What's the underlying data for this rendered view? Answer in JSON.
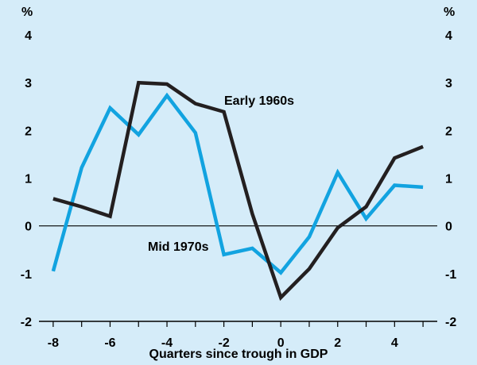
{
  "chart_data": {
    "type": "line",
    "xlabel": "Quarters since trough in GDP",
    "unit_left": "%",
    "unit_right": "%",
    "xlim": [
      -8.5,
      5.5
    ],
    "ylim": [
      -2,
      4
    ],
    "x_ticks": [
      -8,
      -6,
      -4,
      -2,
      0,
      2,
      4
    ],
    "y_ticks": [
      4,
      3,
      2,
      1,
      0,
      -1,
      -2
    ],
    "grid": false,
    "x": [
      -8,
      -7,
      -6,
      -5,
      -4,
      -3,
      -2,
      -1,
      0,
      1,
      2,
      3,
      4,
      5
    ],
    "series": [
      {
        "name": "Early 1960s",
        "color": "#231f20",
        "x": [
          -8,
          -7,
          -6,
          -5,
          -4,
          -3,
          -2,
          -1,
          0,
          1,
          2,
          3,
          4,
          5
        ],
        "values": [
          0.57,
          0.4,
          0.2,
          3.0,
          2.97,
          2.56,
          2.39,
          0.25,
          -1.5,
          -0.9,
          -0.04,
          0.4,
          1.42,
          1.66
        ]
      },
      {
        "name": "Mid 1970s",
        "color": "#12a3e0",
        "x": [
          -8,
          -7,
          -6,
          -5,
          -4,
          -3,
          -2,
          -1,
          0,
          1,
          2,
          3,
          4,
          5
        ],
        "values": [
          -0.95,
          1.22,
          2.47,
          1.91,
          2.73,
          1.95,
          -0.6,
          -0.47,
          -0.98,
          -0.23,
          1.12,
          0.15,
          0.85,
          0.81
        ]
      }
    ],
    "annotations": [
      {
        "text": "Early 1960s",
        "series": "Early 1960s"
      },
      {
        "text": "Mid 1970s",
        "series": "Mid 1970s"
      }
    ]
  }
}
